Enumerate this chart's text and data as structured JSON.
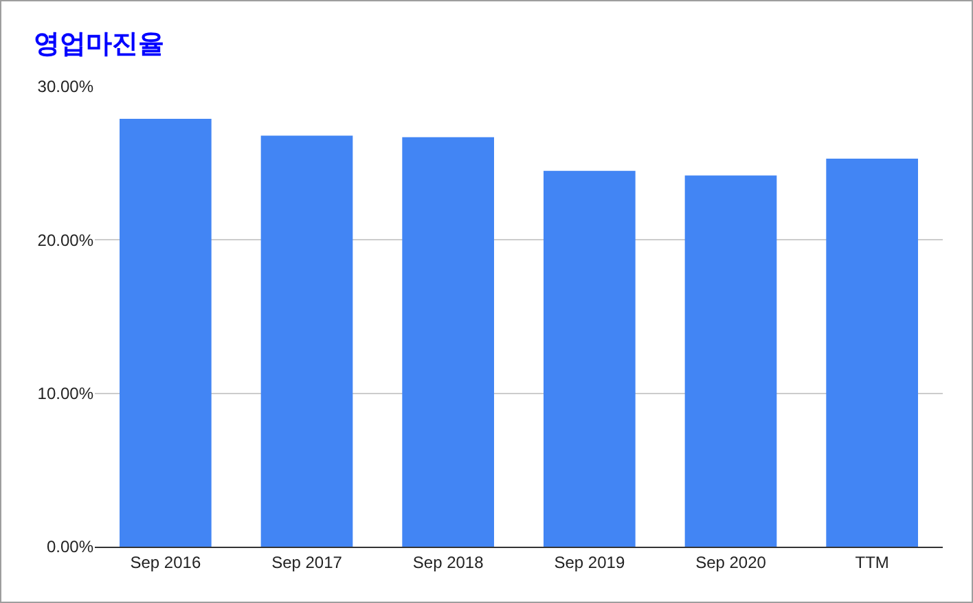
{
  "chart_data": {
    "type": "bar",
    "title": "영업마진율",
    "categories": [
      "Sep 2016",
      "Sep 2017",
      "Sep 2018",
      "Sep 2019",
      "Sep 2020",
      "TTM"
    ],
    "values": [
      27.9,
      26.8,
      26.7,
      24.5,
      24.2,
      25.3
    ],
    "color": "#4285f4",
    "ylim": [
      0,
      30
    ],
    "yticks": [
      {
        "value": 0,
        "label": "0.00%"
      },
      {
        "value": 10,
        "label": "10.00%"
      },
      {
        "value": 20,
        "label": "20.00%"
      },
      {
        "value": 30,
        "label": "30.00%"
      }
    ],
    "grid": "y"
  }
}
